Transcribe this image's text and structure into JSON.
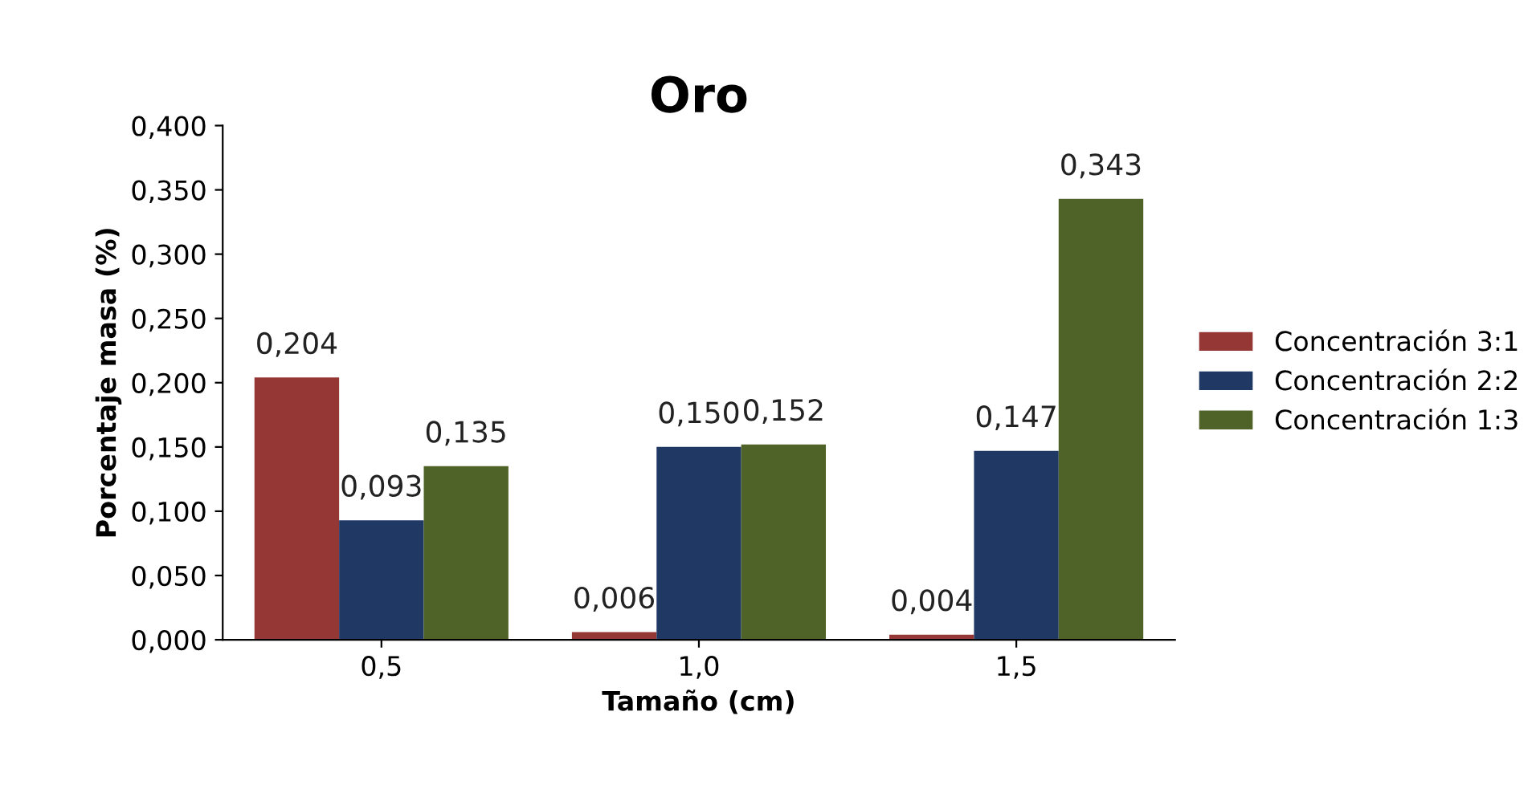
{
  "chart_data": {
    "type": "bar",
    "title": "Oro",
    "xlabel": "Tamaño (cm)",
    "ylabel": "Porcentaje masa (%)",
    "categories": [
      "0,5",
      "1,0",
      "1,5"
    ],
    "series": [
      {
        "name": "Concentración 3:1",
        "color": "#953735",
        "values": [
          0.204,
          0.006,
          0.004
        ],
        "value_labels": [
          "0,204",
          "0,006",
          "0,004"
        ]
      },
      {
        "name": "Concentración 2:2",
        "color": "#1f3864",
        "values": [
          0.093,
          0.15,
          0.147
        ],
        "value_labels": [
          "0,093",
          "0,150",
          "0,147"
        ]
      },
      {
        "name": "Concentración 1:3",
        "color": "#4f6228",
        "values": [
          0.135,
          0.152,
          0.343
        ],
        "value_labels": [
          "0,135",
          "0,152",
          "0,343"
        ]
      }
    ],
    "ylim": [
      0,
      0.4
    ],
    "yticks": [
      {
        "value": 0,
        "label": "0,000"
      },
      {
        "value": 0.05,
        "label": "0,050"
      },
      {
        "value": 0.1,
        "label": "0,100"
      },
      {
        "value": 0.15,
        "label": "0,150"
      },
      {
        "value": 0.2,
        "label": "0,200"
      },
      {
        "value": 0.25,
        "label": "0,250"
      },
      {
        "value": 0.3,
        "label": "0,300"
      },
      {
        "value": 0.35,
        "label": "0,350"
      },
      {
        "value": 0.4,
        "label": "0,400"
      }
    ],
    "grid": false,
    "legend": "right"
  }
}
